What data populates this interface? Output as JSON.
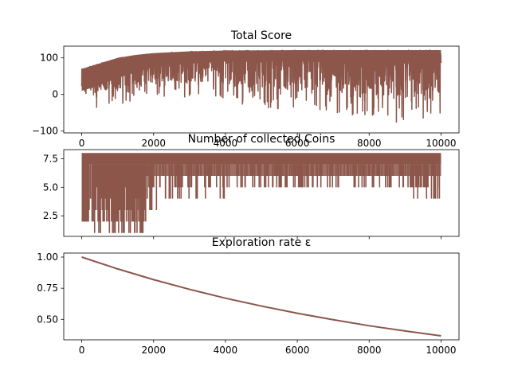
{
  "chart_data": [
    {
      "type": "line",
      "title": "Total Score",
      "xlabel": "",
      "ylabel": "",
      "xlim": [
        -500,
        10500
      ],
      "ylim": [
        -105,
        132
      ],
      "x_ticks": [
        0,
        2000,
        4000,
        6000,
        8000,
        10000
      ],
      "x_tick_labels": [
        "0",
        "2000",
        "4000",
        "6000",
        "8000",
        "10000"
      ],
      "y_ticks": [
        -100,
        0,
        100
      ],
      "y_tick_labels": [
        "−100",
        "0",
        "100"
      ],
      "x_tick_labels_visible": true,
      "grid": false,
      "series": [
        {
          "color": "#8c564b",
          "episodes": [
            0,
            10000
          ],
          "upper_envelope": {
            "x": [
              0,
              500,
              1000,
              1500,
              2000,
              3000,
              4000,
              6000,
              8000,
              10000
            ],
            "y": [
              70,
              85,
              100,
              108,
              113,
              118,
              120,
              121,
              121,
              121
            ]
          },
          "lower_envelope": {
            "x": [
              0,
              500,
              1000,
              1500,
              2000,
              3000,
              4000,
              5000,
              6000,
              7000,
              8000,
              9000,
              10000
            ],
            "y": [
              -35,
              -40,
              -30,
              -15,
              -5,
              -8,
              -20,
              -35,
              -45,
              -55,
              -65,
              -80,
              -60
            ]
          },
          "dense_band": {
            "x": [
              0,
              500,
              1000,
              1500,
              2000,
              3000,
              4000,
              6000,
              8000,
              10000
            ],
            "lower": [
              10,
              25,
              45,
              60,
              75,
              85,
              90,
              90,
              90,
              90
            ]
          }
        }
      ]
    },
    {
      "type": "line",
      "title": "Number of collected Coins",
      "xlabel": "",
      "ylabel": "",
      "xlim": [
        -500,
        10500
      ],
      "ylim": [
        0.7,
        8.3
      ],
      "x_ticks": [
        0,
        2000,
        4000,
        6000,
        8000,
        10000
      ],
      "x_tick_labels": [
        "",
        "",
        "",
        "",
        "",
        ""
      ],
      "y_ticks": [
        2.5,
        5.0,
        7.5
      ],
      "y_tick_labels": [
        "2.5",
        "5.0",
        "7.5"
      ],
      "x_tick_labels_visible": false,
      "grid": false,
      "series": [
        {
          "color": "#8c564b",
          "episodes": [
            0,
            10000
          ],
          "max_value": 8,
          "band_floor": {
            "x": [
              0,
              150,
              200,
              300,
              1000,
              2000,
              10000
            ],
            "y": [
              2,
              2,
              7,
              7,
              7,
              7,
              7
            ]
          },
          "dip_minimum": {
            "x": [
              0,
              300,
              1000,
              2000,
              3000,
              4000,
              6000,
              8000,
              10000
            ],
            "y": [
              2,
              1,
              2,
              3,
              4,
              4,
              5,
              5,
              4
            ]
          }
        }
      ]
    },
    {
      "type": "line",
      "title": "Exploration rate ε",
      "xlabel": "",
      "ylabel": "",
      "xlim": [
        -500,
        10500
      ],
      "ylim": [
        0.336,
        1.032
      ],
      "x_ticks": [
        0,
        2000,
        4000,
        6000,
        8000,
        10000
      ],
      "x_tick_labels": [
        "0",
        "2000",
        "4000",
        "6000",
        "8000",
        "10000"
      ],
      "y_ticks": [
        0.5,
        0.75,
        1.0
      ],
      "y_tick_labels": [
        "0.50",
        "0.75",
        "1.00"
      ],
      "x_tick_labels_visible": true,
      "grid": false,
      "series": [
        {
          "color": "#8c564b",
          "x": [
            0,
            1000,
            2000,
            3000,
            4000,
            5000,
            6000,
            7000,
            8000,
            9000,
            10000
          ],
          "y": [
            1.0,
            0.905,
            0.819,
            0.741,
            0.67,
            0.607,
            0.549,
            0.497,
            0.449,
            0.407,
            0.368
          ]
        }
      ]
    }
  ]
}
